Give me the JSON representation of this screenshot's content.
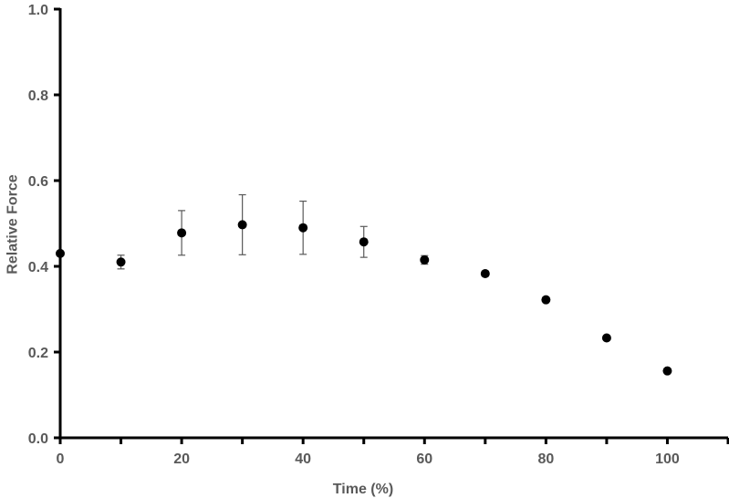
{
  "chart_data": {
    "type": "scatter",
    "xlabel": "Time (%)",
    "ylabel": "Relative Force",
    "xlim": [
      0,
      110
    ],
    "ylim": [
      0,
      1.0
    ],
    "xticks": [
      "0",
      "20",
      "40",
      "60",
      "80",
      "100"
    ],
    "yticks": [
      "0.0",
      "0.2",
      "0.4",
      "0.6",
      "0.8",
      "1.0"
    ],
    "grid": false,
    "series": [
      {
        "points": [
          {
            "x": 0,
            "y": 0.43,
            "err": 0
          },
          {
            "x": 10,
            "y": 0.41,
            "err": 0.016
          },
          {
            "x": 20,
            "y": 0.478,
            "err": 0.052
          },
          {
            "x": 30,
            "y": 0.497,
            "err": 0.07
          },
          {
            "x": 40,
            "y": 0.49,
            "err": 0.062
          },
          {
            "x": 50,
            "y": 0.457,
            "err": 0.036
          },
          {
            "x": 60,
            "y": 0.415,
            "err": 0.01
          },
          {
            "x": 70,
            "y": 0.383,
            "err": 0.006
          },
          {
            "x": 80,
            "y": 0.322,
            "err": 0.0
          },
          {
            "x": 90,
            "y": 0.233,
            "err": 0.0
          },
          {
            "x": 100,
            "y": 0.156,
            "err": 0.0
          }
        ],
        "color": "#000000"
      }
    ]
  }
}
